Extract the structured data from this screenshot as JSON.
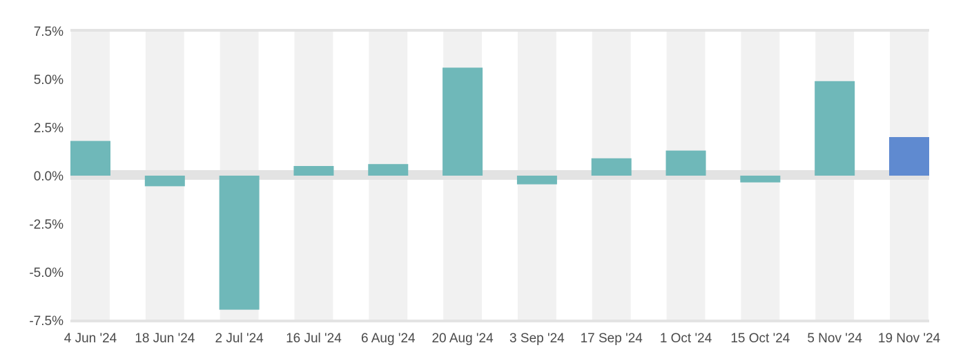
{
  "chart_data": {
    "type": "bar",
    "title": "",
    "xlabel": "",
    "ylabel": "",
    "ylim": [
      -7.5,
      7.5
    ],
    "yticks": [
      7.5,
      5.0,
      2.5,
      0.0,
      -2.5,
      -5.0,
      -7.5
    ],
    "ytick_labels": [
      "7.5%",
      "5.0%",
      "2.5%",
      "0.0%",
      "-2.5%",
      "-5.0%",
      "-7.5%"
    ],
    "categories": [
      "4 Jun '24",
      "18 Jun '24",
      "2 Jul '24",
      "16 Jul '24",
      "6 Aug '24",
      "20 Aug '24",
      "3 Sep '24",
      "17 Sep '24",
      "1 Oct '24",
      "15 Oct '24",
      "5 Nov '24",
      "19 Nov '24"
    ],
    "values": [
      1.8,
      -0.55,
      -6.95,
      0.5,
      0.6,
      5.6,
      -0.45,
      0.9,
      1.3,
      -0.35,
      4.9,
      2.0
    ],
    "grid": true,
    "legend": "none",
    "colors": {
      "bar": "#6fb8b9",
      "highlight": "#5f8ad0",
      "band": "#f1f1f1",
      "zero_line": "#e3e3e3",
      "axis_line": "#e3e3e3",
      "text": "#4a4a4a"
    },
    "highlight_index": 11
  }
}
